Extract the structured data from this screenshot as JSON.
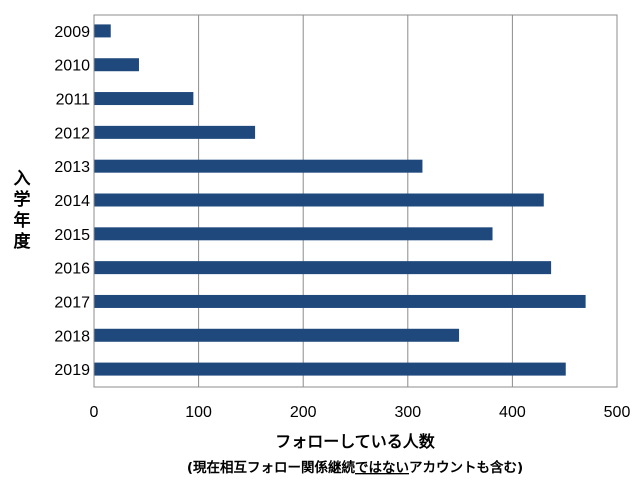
{
  "chart_data": {
    "type": "bar",
    "orientation": "horizontal",
    "categories": [
      "2009",
      "2010",
      "2011",
      "2012",
      "2013",
      "2014",
      "2015",
      "2016",
      "2017",
      "2018",
      "2019"
    ],
    "values": [
      16,
      43,
      95,
      154,
      314,
      430,
      381,
      437,
      470,
      349,
      451
    ],
    "xlim": [
      0,
      500
    ],
    "x_ticks": [
      "0",
      "100",
      "200",
      "300",
      "400",
      "500"
    ],
    "grid": "vertical",
    "bar_color": "#1f497d",
    "ylabel": "入学年度",
    "xlabel": "フォローしている人数",
    "subtitle": {
      "before": "(現在相互フォロー関係継続",
      "underlined": "ではない",
      "after": "アカウントも含む)"
    }
  }
}
